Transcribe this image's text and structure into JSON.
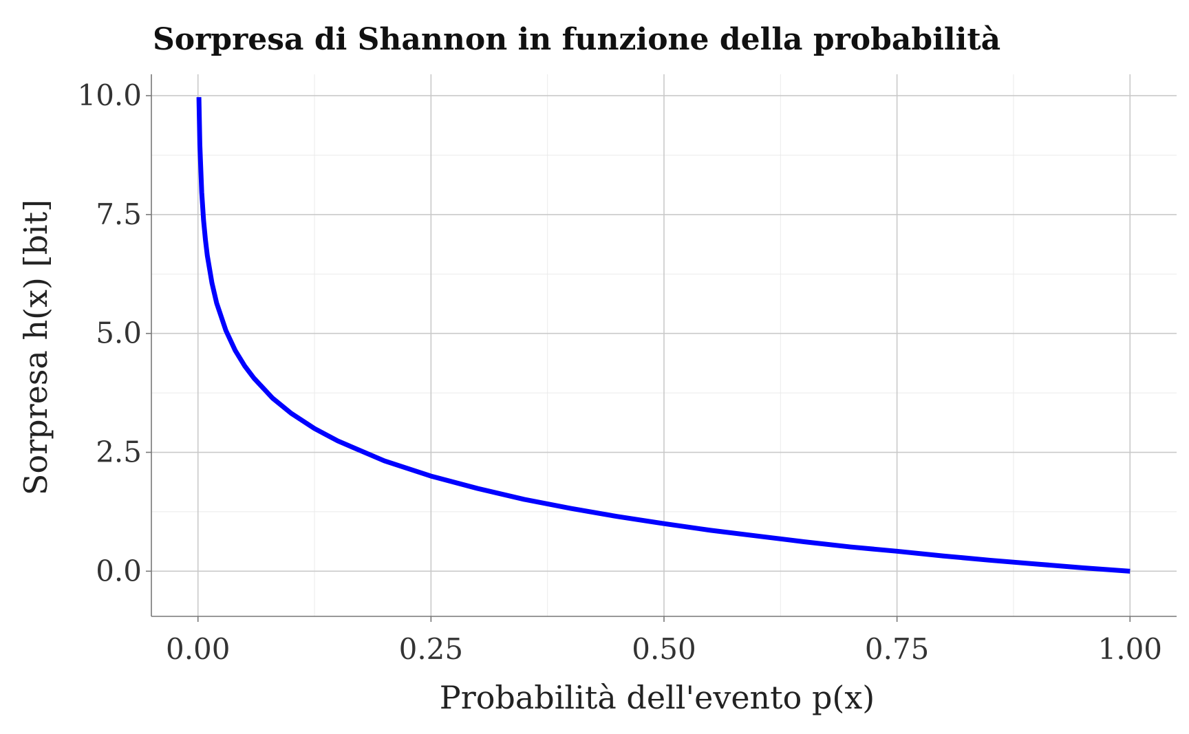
{
  "chart_data": {
    "type": "line",
    "title": "Sorpresa di Shannon in funzione della probabilità",
    "xlabel": "Probabilità dell'evento p(x)",
    "ylabel": "Sorpresa h(x) [bit]",
    "xlim": [
      -0.05,
      1.05
    ],
    "ylim": [
      -0.95,
      10.45
    ],
    "grid": true,
    "x_ticks": [
      0,
      0.25,
      0.5,
      0.75,
      1
    ],
    "x_tick_labels": [
      "0.00",
      "0.25",
      "0.50",
      "0.75",
      "1.00"
    ],
    "y_ticks": [
      0,
      2.5,
      5,
      7.5,
      10
    ],
    "y_tick_labels": [
      "0.0",
      "2.5",
      "5.0",
      "7.5",
      "10.0"
    ],
    "series": [
      {
        "color": "#0000ff",
        "x": [
          0.001,
          0.002,
          0.004,
          0.006,
          0.008,
          0.01,
          0.015,
          0.02,
          0.03,
          0.04,
          0.05,
          0.06,
          0.08,
          0.1,
          0.125,
          0.15,
          0.2,
          0.25,
          0.3,
          0.35,
          0.4,
          0.45,
          0.5,
          0.55,
          0.6,
          0.65,
          0.7,
          0.75,
          0.8,
          0.85,
          0.9,
          0.95,
          1.0
        ],
        "y": [
          9.97,
          8.97,
          7.97,
          7.38,
          6.97,
          6.64,
          6.06,
          5.64,
          5.06,
          4.64,
          4.32,
          4.06,
          3.64,
          3.32,
          3.0,
          2.74,
          2.32,
          2.0,
          1.74,
          1.51,
          1.32,
          1.15,
          1.0,
          0.86,
          0.74,
          0.62,
          0.51,
          0.42,
          0.32,
          0.23,
          0.15,
          0.07,
          0.0
        ]
      }
    ]
  }
}
